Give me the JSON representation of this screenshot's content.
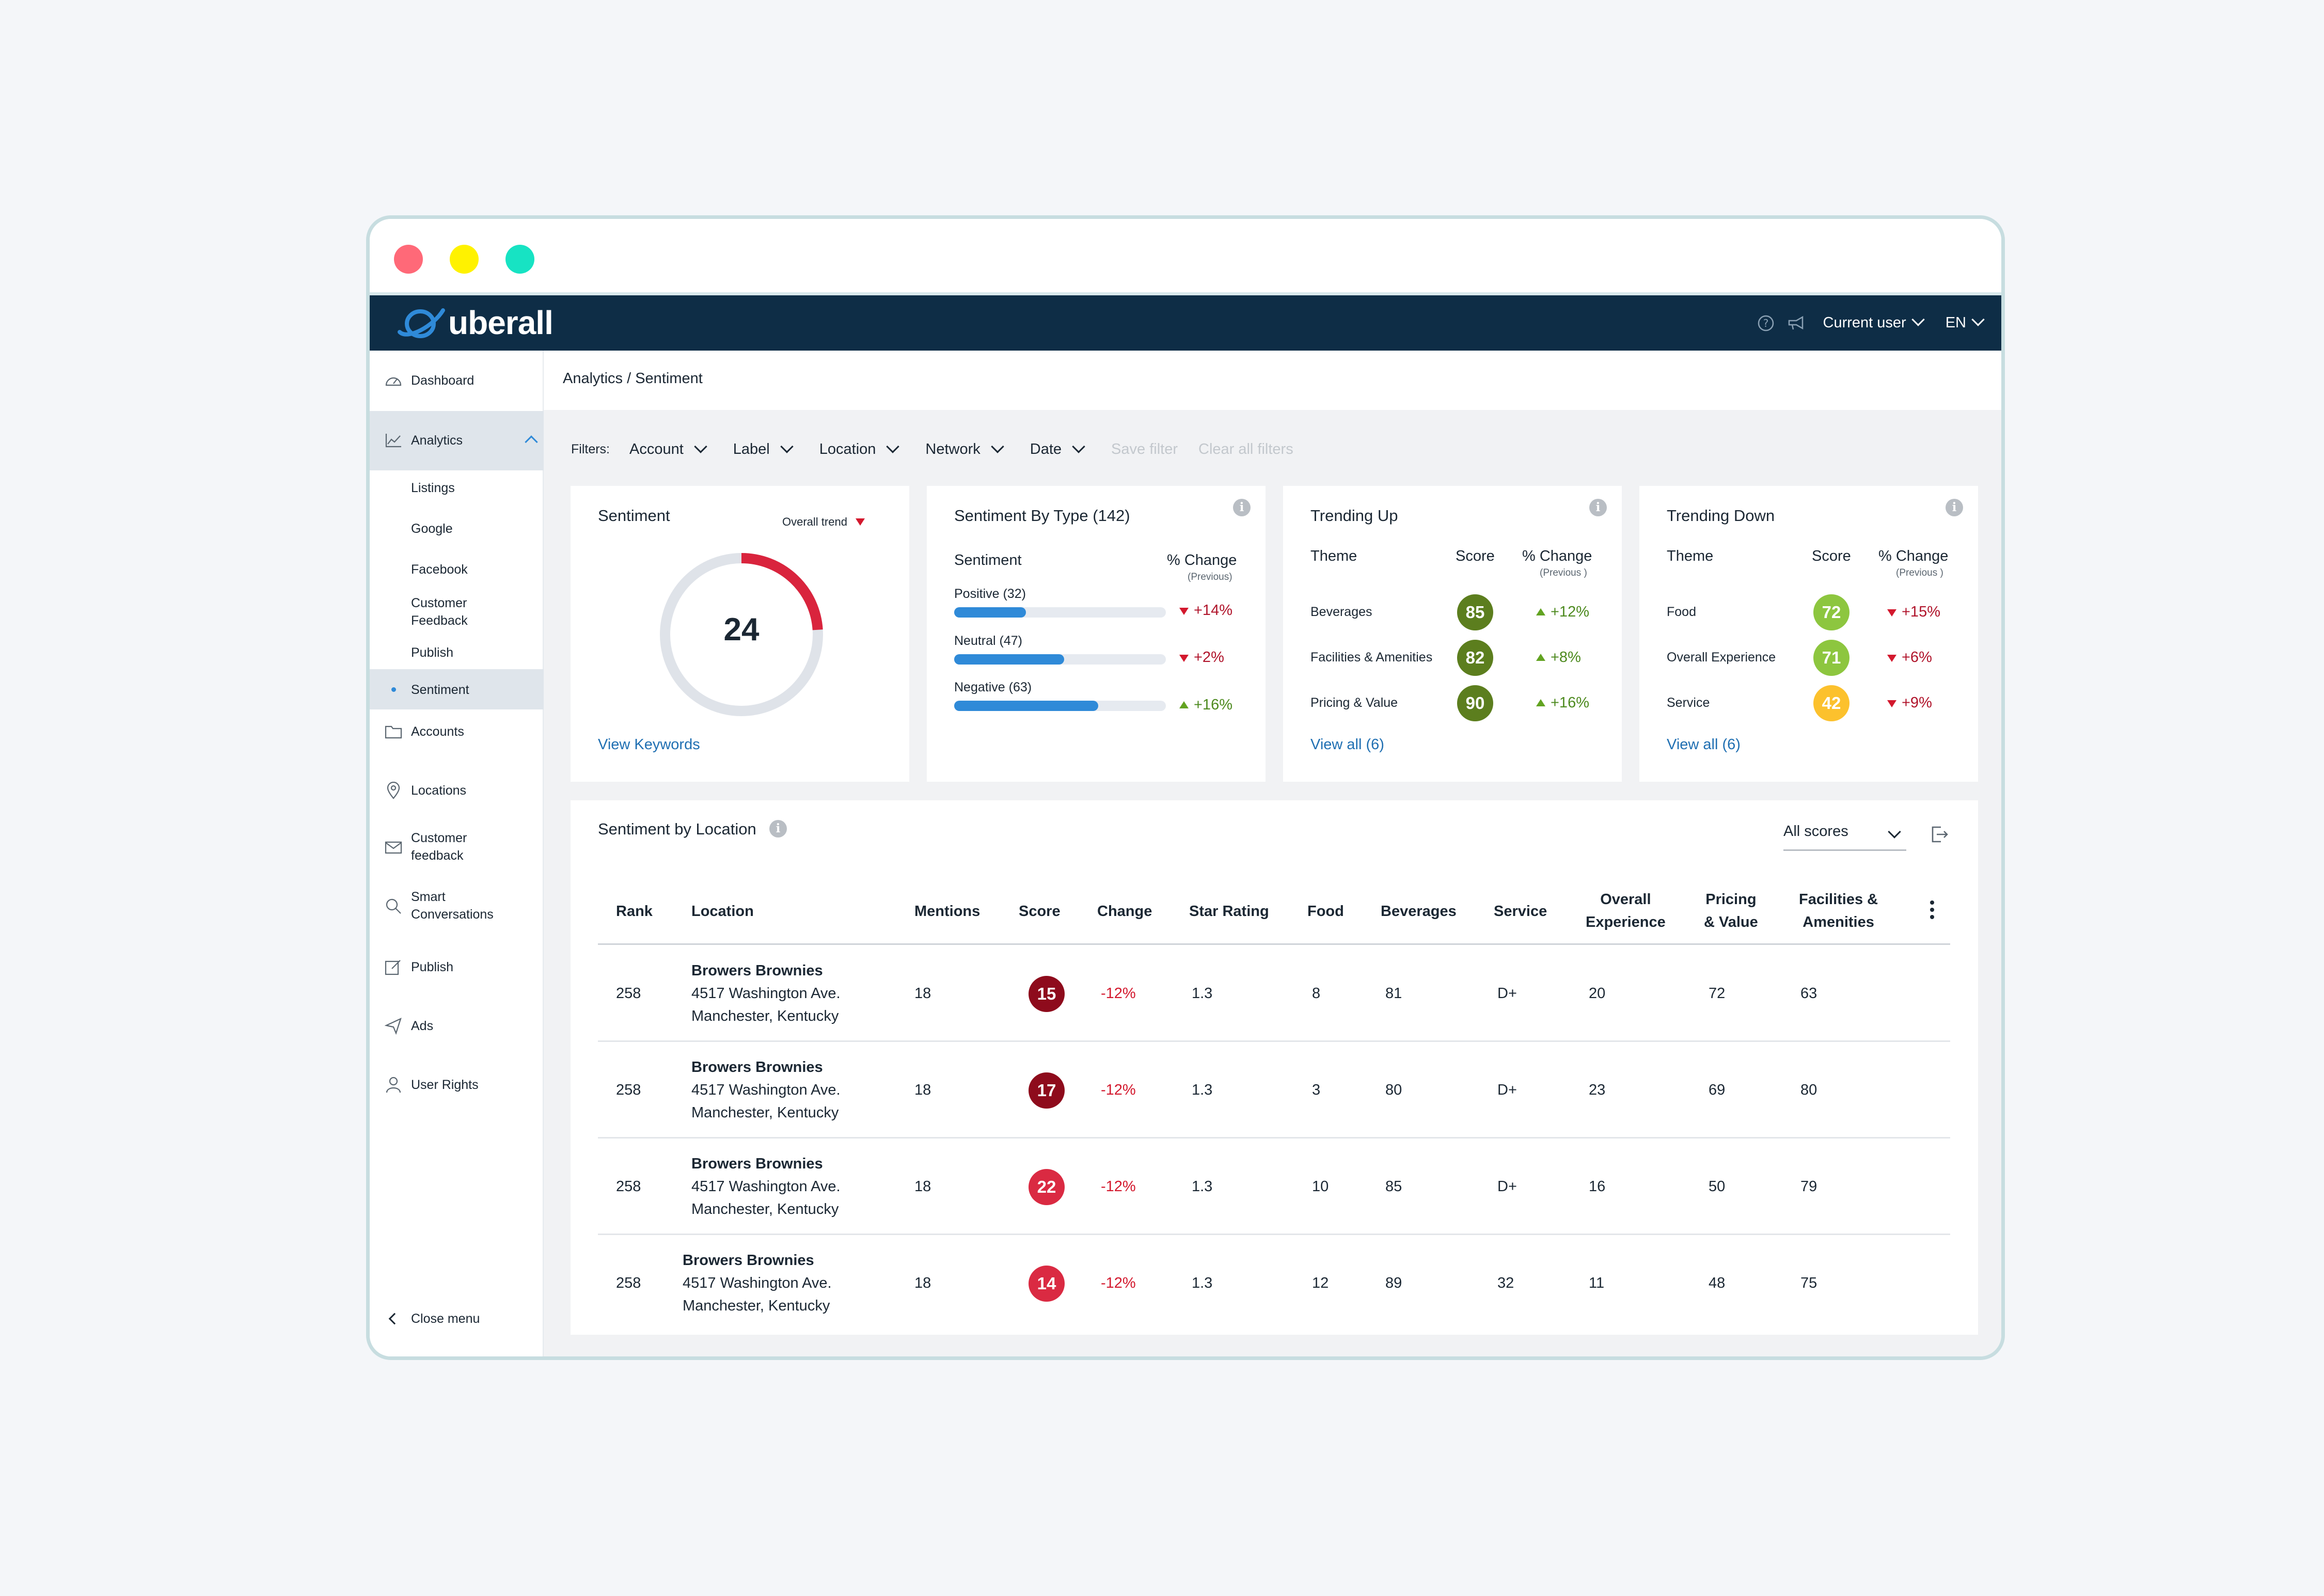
{
  "app": {
    "logo_text": "uberall",
    "help_icon": "question-circle-icon",
    "notify_icon": "megaphone-icon",
    "current_user": "Current user",
    "language": "EN"
  },
  "window_dots": [
    "#ff6978",
    "#fff200",
    "#17e3c3"
  ],
  "sidebar": {
    "items": [
      {
        "label": "Dashboard",
        "icon": "dashboard-gauge-icon"
      },
      {
        "label": "Analytics",
        "icon": "line-chart-icon"
      },
      {
        "label": "Accounts",
        "icon": "folder-icon"
      },
      {
        "label": "Locations",
        "icon": "map-pin-icon"
      },
      {
        "label": "Customer\nfeedback",
        "icon": "mail-icon"
      },
      {
        "label": "Smart\nConversations",
        "icon": "chat-search-icon"
      },
      {
        "label": "Publish",
        "icon": "edit-icon"
      },
      {
        "label": "Ads",
        "icon": "send-icon"
      },
      {
        "label": "User Rights",
        "icon": "user-icon"
      }
    ],
    "analytics_sub": [
      "Listings",
      "Google",
      "Facebook",
      "Customer\nFeedback",
      "Publish",
      "Sentiment"
    ],
    "close_menu": "Close menu"
  },
  "breadcrumb": "Analytics / Sentiment",
  "filters": {
    "label": "Filters:",
    "items": [
      "Account",
      "Label",
      "Location",
      "Network",
      "Date"
    ],
    "save": "Save filter",
    "clear": "Clear all filters"
  },
  "sentiment_card": {
    "title": "Sentiment",
    "trend_label": "Overall trend",
    "score": "24",
    "score_fraction": 0.24,
    "link": "View Keywords"
  },
  "by_type_card": {
    "title": "Sentiment By Type (142)",
    "col1": "Sentiment",
    "col2": "% Change",
    "col2_sub": "(Previous)",
    "rows": [
      {
        "label": "Positive (32)",
        "fill": 0.34,
        "change": "+14%",
        "dir": "down"
      },
      {
        "label": "Neutral (47)",
        "fill": 0.52,
        "change": "+2%",
        "dir": "down"
      },
      {
        "label": "Negative (63)",
        "fill": 0.68,
        "change": "+16%",
        "dir": "up"
      }
    ]
  },
  "trending_up": {
    "title": "Trending Up",
    "col_theme": "Theme",
    "col_score": "Score",
    "col_change": "% Change",
    "col_change_sub": "(Previous )",
    "link": "View all (6)",
    "rows": [
      {
        "theme": "Beverages",
        "score": "85",
        "color": "#5c7e1e",
        "change": "+12%",
        "dir": "up"
      },
      {
        "theme": "Facilities & Amenities",
        "score": "82",
        "color": "#5c7e1e",
        "change": "+8%",
        "dir": "up"
      },
      {
        "theme": "Pricing & Value",
        "score": "90",
        "color": "#5c7e1e",
        "change": "+16%",
        "dir": "up"
      }
    ]
  },
  "trending_down": {
    "title": "Trending Down",
    "col_theme": "Theme",
    "col_score": "Score",
    "col_change": "% Change",
    "col_change_sub": "(Previous )",
    "link": "View all (6)",
    "rows": [
      {
        "theme": "Food",
        "score": "72",
        "color": "#8dc63f",
        "change": "+15%",
        "dir": "down"
      },
      {
        "theme": "Overall Experience",
        "score": "71",
        "color": "#8dc63f",
        "change": "+6%",
        "dir": "down"
      },
      {
        "theme": "Service",
        "score": "42",
        "color": "#fcc12d",
        "change": "+9%",
        "dir": "down"
      }
    ]
  },
  "location_table": {
    "title": "Sentiment by Location",
    "scores_select": "All scores",
    "export_icon": "export-icon",
    "headers": [
      "Rank",
      "Location",
      "Mentions",
      "Score",
      "Change",
      "Star Rating",
      "Food",
      "Beverages",
      "Service",
      "Overall\nExperience",
      "Pricing\n& Value",
      "Facilities &\nAmenities"
    ],
    "rows": [
      {
        "rank": "258",
        "name": "Browers Brownies",
        "addr1": "4517 Washington Ave.",
        "addr2": "Manchester, Kentucky",
        "mentions": "18",
        "score": "15",
        "score_color": "#8e0b1c",
        "change": "-12%",
        "star": "1.3",
        "food": "8",
        "beverages": "81",
        "service": "D+",
        "overall": "20",
        "pricing": "72",
        "facilities": "63"
      },
      {
        "rank": "258",
        "name": "Browers Brownies",
        "addr1": "4517 Washington Ave.",
        "addr2": "Manchester, Kentucky",
        "mentions": "18",
        "score": "17",
        "score_color": "#8e0b1c",
        "change": "-12%",
        "star": "1.3",
        "food": "3",
        "beverages": "80",
        "service": "D+",
        "overall": "23",
        "pricing": "69",
        "facilities": "80"
      },
      {
        "rank": "258",
        "name": "Browers Brownies",
        "addr1": "4517 Washington Ave.",
        "addr2": "Manchester, Kentucky",
        "mentions": "18",
        "score": "22",
        "score_color": "#da2a42",
        "change": "-12%",
        "star": "1.3",
        "food": "10",
        "beverages": "85",
        "service": "D+",
        "overall": "16",
        "pricing": "50",
        "facilities": "79"
      },
      {
        "rank": "258",
        "name": "Browers Brownies",
        "addr1": "4517 Washington Ave.",
        "addr2": "Manchester, Kentucky",
        "mentions": "18",
        "score": "14",
        "score_color": "#da2a42",
        "change": "-12%",
        "star": "1.3",
        "food": "12",
        "beverages": "89",
        "service": "32",
        "overall": "11",
        "pricing": "48",
        "facilities": "75"
      }
    ]
  }
}
